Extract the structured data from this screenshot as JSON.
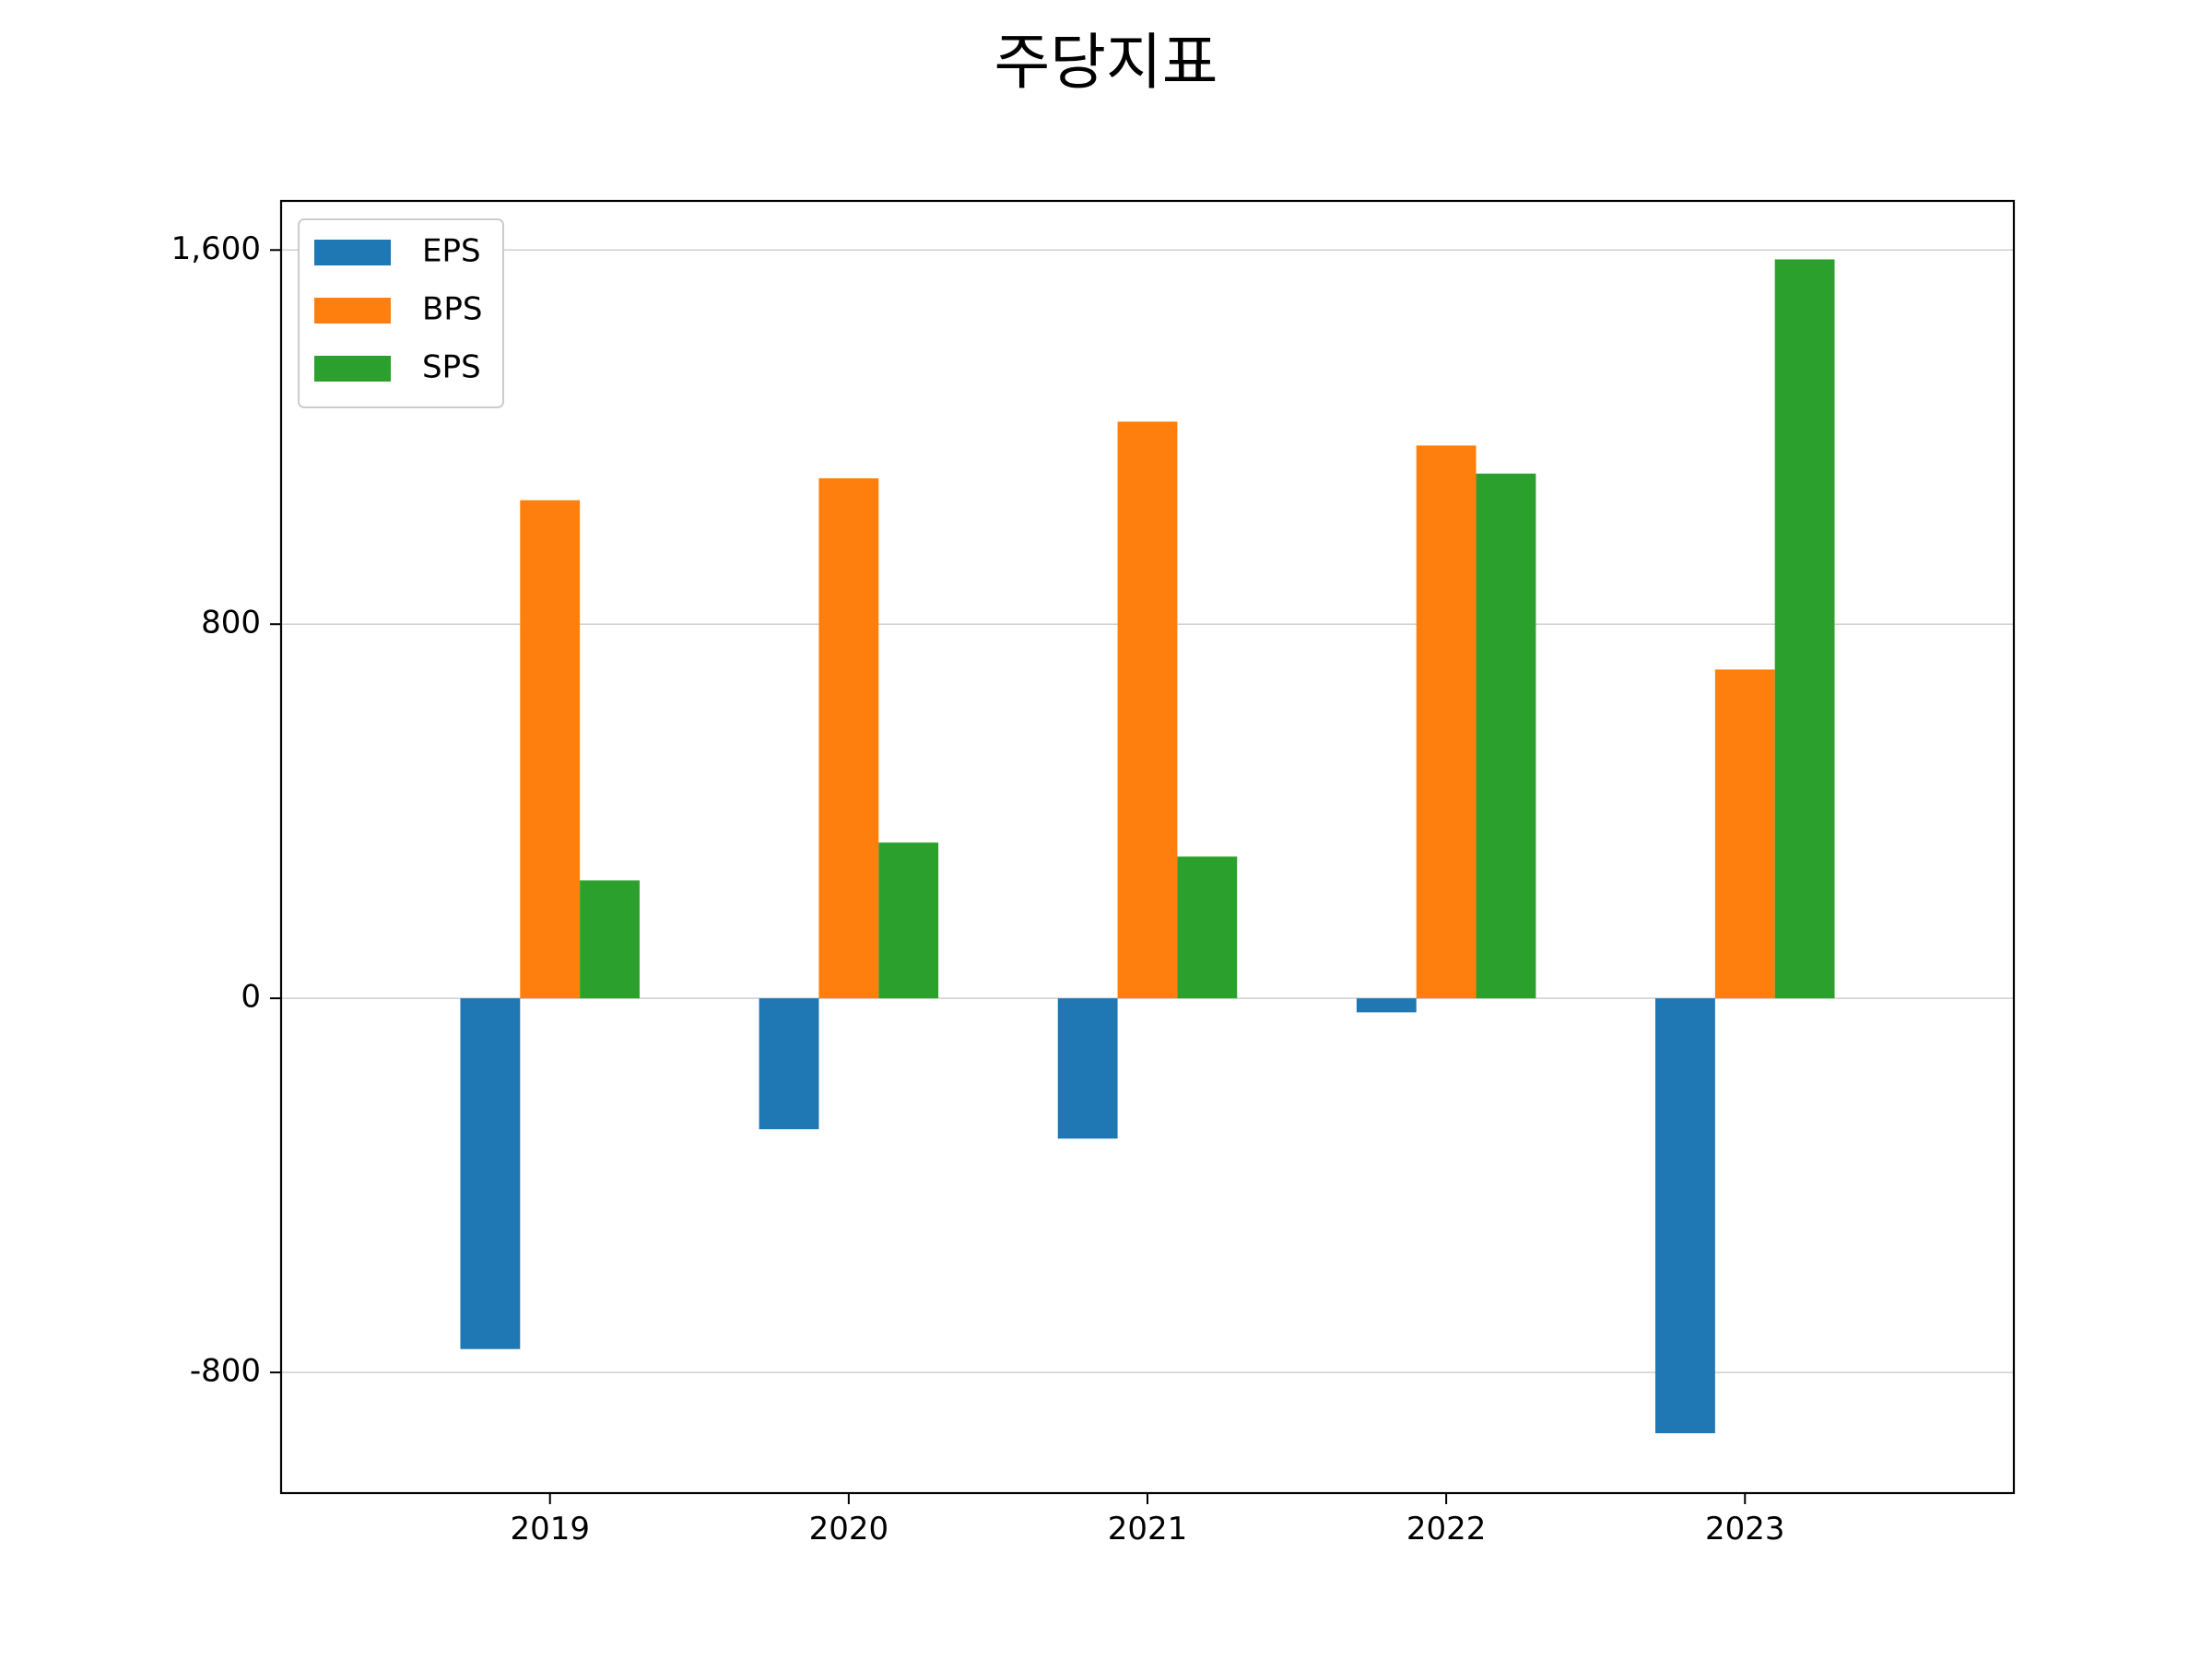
{
  "chart_data": {
    "type": "bar",
    "title": "주당지표",
    "categories": [
      "2019",
      "2020",
      "2021",
      "2022",
      "2023"
    ],
    "series": [
      {
        "name": "EPS",
        "color": "#1f77b4",
        "values": [
          -750,
          -280,
          -300,
          -30,
          -930
        ]
      },
      {
        "name": "BPS",
        "color": "#ff7f0e",
        "values": [
          1065,
          1112,
          1233,
          1182,
          703
        ]
      },
      {
        "name": "SPS",
        "color": "#2ca02c",
        "values": [
          252,
          333,
          303,
          1122,
          1580
        ]
      }
    ],
    "yticks": [
      -800,
      0,
      800,
      1600
    ],
    "ytick_labels": [
      "-800",
      "0",
      "800",
      "1,600"
    ],
    "ylim": [
      -1058,
      1705
    ],
    "grid": "y",
    "legend_position": "upper left",
    "xlabel": "",
    "ylabel": ""
  }
}
